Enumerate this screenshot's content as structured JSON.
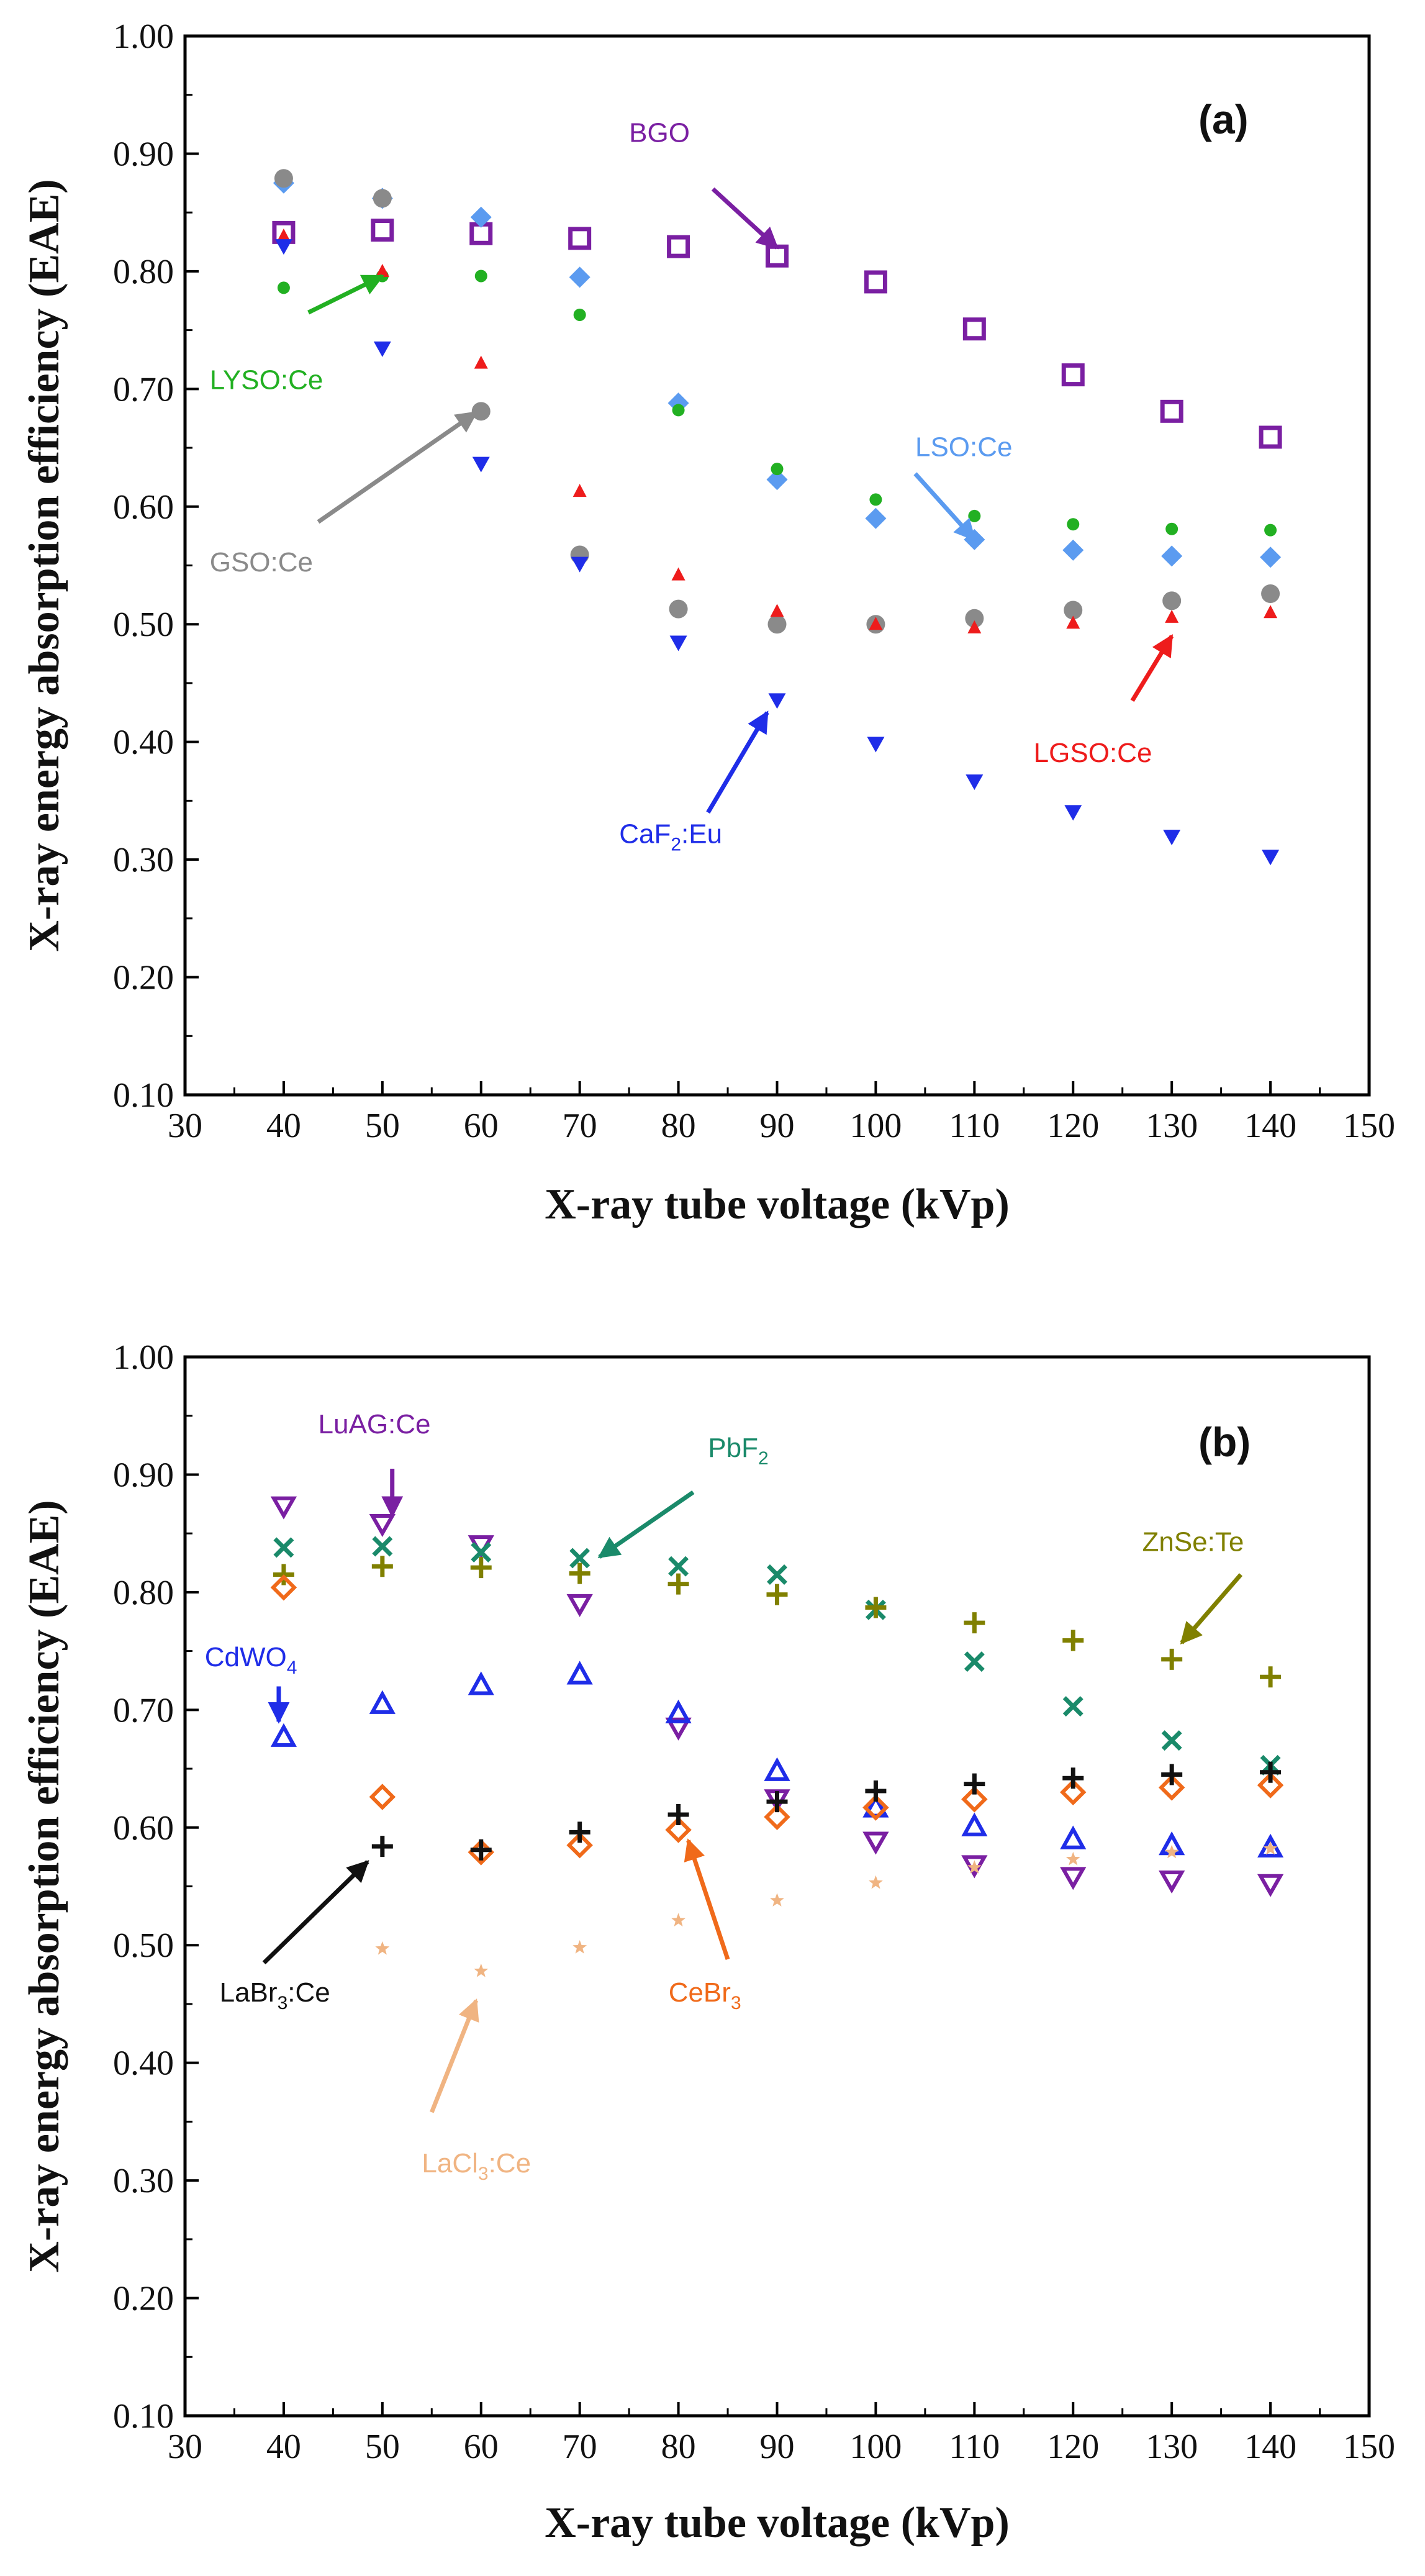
{
  "chart_data": [
    {
      "type": "scatter",
      "panel_label": "(a)",
      "xlabel": "X-ray tube voltage (kVp)",
      "ylabel": "X-ray energy absorption efficiency (EAE)",
      "xlim": [
        30,
        150
      ],
      "ylim": [
        0.1,
        1.0
      ],
      "x_ticks": [
        "30",
        "40",
        "50",
        "60",
        "70",
        "80",
        "90",
        "100",
        "110",
        "120",
        "130",
        "140",
        "150"
      ],
      "y_ticks": [
        "0.10",
        "0.20",
        "0.30",
        "0.40",
        "0.50",
        "0.60",
        "0.70",
        "0.80",
        "0.90",
        "1.00"
      ],
      "grid": false,
      "legend": "none",
      "series": [
        {
          "name": "BGO",
          "marker": "square-open",
          "color": "#7a1fa2",
          "x": [
            40,
            50,
            60,
            70,
            80,
            90,
            100,
            110,
            120,
            130,
            140
          ],
          "y": [
            0.833,
            0.835,
            0.832,
            0.828,
            0.821,
            0.813,
            0.791,
            0.751,
            0.712,
            0.681,
            0.659
          ]
        },
        {
          "name": "LSO:Ce",
          "marker": "diamond",
          "color": "#5b9bf0",
          "x": [
            40,
            50,
            60,
            70,
            80,
            90,
            100,
            110,
            120,
            130,
            140
          ],
          "y": [
            0.875,
            0.862,
            0.846,
            0.795,
            0.688,
            0.623,
            0.59,
            0.572,
            0.563,
            0.558,
            0.557
          ]
        },
        {
          "name": "LYSO:Ce",
          "marker": "circle-small",
          "color": "#22b022",
          "x": [
            40,
            50,
            60,
            70,
            80,
            90,
            100,
            110,
            120,
            130,
            140
          ],
          "y": [
            0.786,
            0.796,
            0.796,
            0.763,
            0.682,
            0.632,
            0.606,
            0.592,
            0.585,
            0.581,
            0.58
          ]
        },
        {
          "name": "GSO:Ce",
          "marker": "circle",
          "color": "#8a8a8a",
          "x": [
            40,
            50,
            60,
            70,
            80,
            90,
            100,
            110,
            120,
            130,
            140
          ],
          "y": [
            0.879,
            0.862,
            0.681,
            0.559,
            0.513,
            0.5,
            0.5,
            0.505,
            0.512,
            0.52,
            0.526
          ]
        },
        {
          "name": "LGSO:Ce",
          "marker": "triangle-up-small",
          "color": "#ee1c1c",
          "x": [
            40,
            50,
            60,
            70,
            80,
            90,
            100,
            110,
            120,
            130,
            140
          ],
          "y": [
            0.83,
            0.8,
            0.722,
            0.613,
            0.542,
            0.511,
            0.5,
            0.497,
            0.501,
            0.506,
            0.51
          ]
        },
        {
          "name": "CaF₂:Eu",
          "marker": "triangle-down",
          "color": "#1f2de8",
          "x": [
            40,
            50,
            60,
            70,
            80,
            90,
            100,
            110,
            120,
            130,
            140
          ],
          "y": [
            0.821,
            0.734,
            0.636,
            0.551,
            0.484,
            0.435,
            0.398,
            0.366,
            0.34,
            0.319,
            0.302
          ]
        }
      ],
      "annotations": [
        {
          "label_parts": [
            {
              "t": "BGO"
            }
          ],
          "color": "#7a1fa2",
          "label_at": [
            75,
            0.91
          ],
          "arrow_from": [
            83.5,
            0.87
          ],
          "arrow_to": [
            90,
            0.82
          ]
        },
        {
          "label_parts": [
            {
              "t": "LYSO:Ce"
            }
          ],
          "color": "#22b022",
          "label_at": [
            32.5,
            0.7
          ],
          "arrow_from": [
            42.5,
            0.765
          ],
          "arrow_to": [
            50,
            0.796
          ]
        },
        {
          "label_parts": [
            {
              "t": "GSO:Ce"
            }
          ],
          "color": "#8a8a8a",
          "label_at": [
            32.5,
            0.545
          ],
          "arrow_from": [
            43.5,
            0.587
          ],
          "arrow_to": [
            59.5,
            0.68
          ]
        },
        {
          "label_parts": [
            {
              "t": "LSO:Ce"
            }
          ],
          "color": "#5b9bf0",
          "label_at": [
            104,
            0.643
          ],
          "arrow_from": [
            104,
            0.628
          ],
          "arrow_to": [
            110,
            0.572
          ]
        },
        {
          "label_parts": [
            {
              "t": "LGSO:Ce"
            }
          ],
          "color": "#ee1c1c",
          "label_at": [
            116,
            0.383
          ],
          "arrow_from": [
            126,
            0.435
          ],
          "arrow_to": [
            130,
            0.49
          ]
        },
        {
          "label_parts": [
            {
              "t": "CaF"
            },
            {
              "t": "2",
              "sub": true
            },
            {
              "t": ":Eu"
            }
          ],
          "color": "#1f2de8",
          "label_at": [
            74,
            0.314
          ],
          "arrow_from": [
            83,
            0.34
          ],
          "arrow_to": [
            89,
            0.425
          ]
        }
      ]
    },
    {
      "type": "scatter",
      "panel_label": "(b)",
      "xlabel": "X-ray tube voltage (kVp)",
      "ylabel": "X-ray energy absorption efficiency (EAE)",
      "xlim": [
        30,
        150
      ],
      "ylim": [
        0.1,
        1.0
      ],
      "x_ticks": [
        "30",
        "40",
        "50",
        "60",
        "70",
        "80",
        "90",
        "100",
        "110",
        "120",
        "130",
        "140",
        "150"
      ],
      "y_ticks": [
        "0.10",
        "0.20",
        "0.30",
        "0.40",
        "0.50",
        "0.60",
        "0.70",
        "0.80",
        "0.90",
        "1.00"
      ],
      "grid": false,
      "legend": "none",
      "series": [
        {
          "name": "LuAG:Ce",
          "marker": "triangle-down-open",
          "color": "#7a1fa2",
          "x": [
            40,
            50,
            60,
            70,
            80,
            90,
            100,
            110,
            120,
            130,
            140
          ],
          "y": [
            0.873,
            0.858,
            0.84,
            0.79,
            0.685,
            0.624,
            0.588,
            0.568,
            0.558,
            0.555,
            0.552
          ]
        },
        {
          "name": "PbF₂",
          "marker": "x",
          "color": "#1a8a6a",
          "x": [
            40,
            50,
            60,
            70,
            80,
            90,
            100,
            110,
            120,
            130,
            140
          ],
          "y": [
            0.838,
            0.839,
            0.834,
            0.829,
            0.822,
            0.815,
            0.785,
            0.741,
            0.703,
            0.674,
            0.653
          ]
        },
        {
          "name": "ZnSe:Te",
          "marker": "plus",
          "color": "#808000",
          "x": [
            40,
            50,
            60,
            70,
            80,
            90,
            100,
            110,
            120,
            130,
            140
          ],
          "y": [
            0.815,
            0.822,
            0.821,
            0.816,
            0.807,
            0.798,
            0.787,
            0.774,
            0.759,
            0.743,
            0.728
          ]
        },
        {
          "name": "CdWO₄",
          "marker": "triangle-up-open",
          "color": "#1f2de8",
          "x": [
            40,
            50,
            60,
            70,
            80,
            90,
            100,
            110,
            120,
            130,
            140
          ],
          "y": [
            0.677,
            0.705,
            0.721,
            0.73,
            0.697,
            0.648,
            0.617,
            0.601,
            0.59,
            0.585,
            0.583
          ]
        },
        {
          "name": "CeBr₃",
          "marker": "diamond-open",
          "color": "#f06a1a",
          "x": [
            40,
            50,
            60,
            70,
            80,
            90,
            100,
            110,
            120,
            130,
            140
          ],
          "y": [
            0.804,
            0.626,
            0.579,
            0.585,
            0.598,
            0.609,
            0.617,
            0.624,
            0.63,
            0.634,
            0.636
          ]
        },
        {
          "name": "LaBr₃:Ce",
          "marker": "plus",
          "color": "#111111",
          "x": [
            50,
            60,
            70,
            80,
            90,
            100,
            110,
            120,
            130,
            140
          ],
          "y": [
            0.584,
            0.581,
            0.596,
            0.611,
            0.622,
            0.631,
            0.637,
            0.642,
            0.645,
            0.647
          ]
        },
        {
          "name": "LaCl₃:Ce",
          "marker": "star",
          "color": "#f0b482",
          "x": [
            50,
            60,
            70,
            80,
            90,
            100,
            110,
            120,
            130,
            140
          ],
          "y": [
            0.497,
            0.478,
            0.498,
            0.521,
            0.538,
            0.553,
            0.566,
            0.573,
            0.579,
            0.582
          ]
        }
      ],
      "annotations": [
        {
          "label_parts": [
            {
              "t": "LuAG:Ce"
            }
          ],
          "color": "#7a1fa2",
          "label_at": [
            43.5,
            0.935
          ],
          "arrow_from": [
            51,
            0.905
          ],
          "arrow_to": [
            51,
            0.865
          ]
        },
        {
          "label_parts": [
            {
              "t": "PbF"
            },
            {
              "t": "2",
              "sub": true
            }
          ],
          "color": "#1a8a6a",
          "label_at": [
            83,
            0.915
          ],
          "arrow_from": [
            81.5,
            0.885
          ],
          "arrow_to": [
            72,
            0.83
          ]
        },
        {
          "label_parts": [
            {
              "t": "ZnSe:Te"
            }
          ],
          "color": "#808000",
          "label_at": [
            127,
            0.835
          ],
          "arrow_from": [
            137,
            0.815
          ],
          "arrow_to": [
            131,
            0.757
          ]
        },
        {
          "label_parts": [
            {
              "t": "CdWO"
            },
            {
              "t": "4",
              "sub": true
            }
          ],
          "color": "#1f2de8",
          "label_at": [
            32,
            0.737
          ],
          "arrow_from": [
            39.5,
            0.72
          ],
          "arrow_to": [
            39.5,
            0.69
          ]
        },
        {
          "label_parts": [
            {
              "t": "LaBr"
            },
            {
              "t": "3",
              "sub": true
            },
            {
              "t": ":Ce"
            }
          ],
          "color": "#111111",
          "label_at": [
            33.5,
            0.452
          ],
          "arrow_from": [
            38,
            0.485
          ],
          "arrow_to": [
            48.5,
            0.571
          ]
        },
        {
          "label_parts": [
            {
              "t": "LaCl"
            },
            {
              "t": "3",
              "sub": true
            },
            {
              "t": ":Ce"
            }
          ],
          "color": "#f0b482",
          "label_at": [
            54,
            0.307
          ],
          "arrow_from": [
            55,
            0.358
          ],
          "arrow_to": [
            59.5,
            0.453
          ]
        },
        {
          "label_parts": [
            {
              "t": "CeBr"
            },
            {
              "t": "3",
              "sub": true
            }
          ],
          "color": "#f06a1a",
          "label_at": [
            79,
            0.452
          ],
          "arrow_from": [
            85,
            0.488
          ],
          "arrow_to": [
            81,
            0.589
          ]
        }
      ]
    }
  ]
}
